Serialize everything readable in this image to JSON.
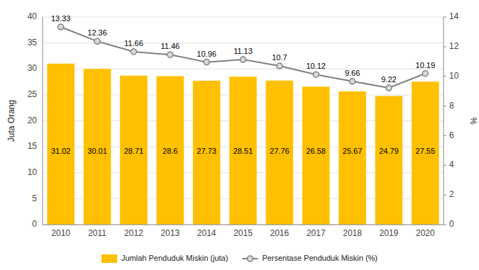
{
  "chart_data": {
    "type": "bar",
    "categories": [
      "2010",
      "2011",
      "2012",
      "2013",
      "2014",
      "2015",
      "2016",
      "2017",
      "2018",
      "2019",
      "2020"
    ],
    "y_label": "Juta Orang",
    "y2_label": "%",
    "ylim": [
      0,
      40
    ],
    "yticks": [
      0,
      5,
      10,
      15,
      20,
      25,
      30,
      35,
      40
    ],
    "y2lim": [
      0,
      14
    ],
    "y2ticks": [
      0,
      2,
      4,
      6,
      8,
      10,
      12,
      14
    ],
    "grid": true,
    "legend": "bottom",
    "data_labels": true,
    "series": [
      {
        "name": "Jumlah Penduduk Miskin (juta)",
        "type": "bar",
        "color": "#FFC000",
        "values": [
          31.02,
          30.01,
          28.71,
          28.6,
          27.73,
          28.51,
          27.76,
          26.58,
          25.67,
          24.79,
          27.55
        ]
      },
      {
        "name": "Persentase Penduduk Miskin (%)",
        "type": "line",
        "axis": "y2",
        "color": "#808080",
        "marker": "circle",
        "values": [
          13.33,
          12.36,
          11.66,
          11.46,
          10.96,
          11.13,
          10.7,
          10.12,
          9.66,
          9.22,
          10.19
        ]
      }
    ]
  }
}
